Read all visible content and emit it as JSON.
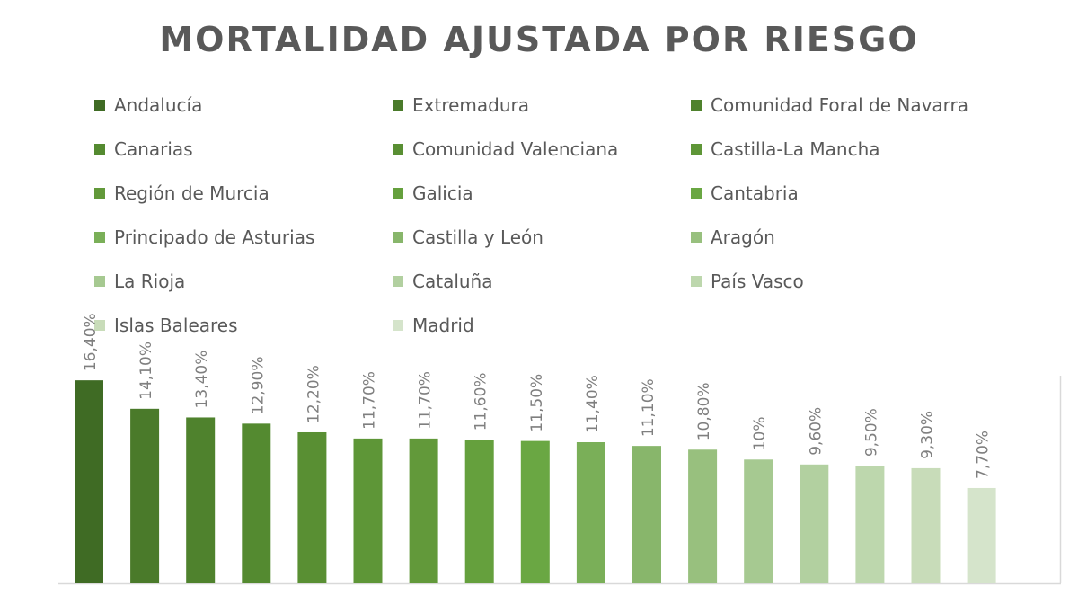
{
  "chart_data": {
    "type": "bar",
    "title": "MORTALIDAD AJUSTADA POR RIESGO",
    "categories": [
      "Andalucía",
      "Extremadura",
      "Comunidad Foral de Navarra",
      "Canarias",
      "Comunidad Valenciana",
      "Castilla-La Mancha",
      "Región de Murcia",
      "Galicia",
      "Cantabria",
      "Principado de Asturias",
      "Castilla y León",
      "Aragón",
      "La Rioja",
      "Cataluña",
      "País Vasco",
      "Islas Baleares",
      "Madrid"
    ],
    "values": [
      16.4,
      14.1,
      13.4,
      12.9,
      12.2,
      11.7,
      11.7,
      11.6,
      11.5,
      11.4,
      11.1,
      10.8,
      10.0,
      9.6,
      9.5,
      9.3,
      7.7
    ],
    "labels": [
      "16,40%",
      "14,10%",
      "13,40%",
      "12,90%",
      "12,20%",
      "11,70%",
      "11,70%",
      "11,60%",
      "11,50%",
      "11,40%",
      "11,10%",
      "10,80%",
      "10%",
      "9,60%",
      "9,50%",
      "9,30%",
      "7,70%"
    ],
    "colors": [
      "#3f6b24",
      "#4a7a2a",
      "#4f822d",
      "#548a30",
      "#598f33",
      "#5e9637",
      "#62993a",
      "#65a03d",
      "#6aa743",
      "#7aaf58",
      "#88b66b",
      "#98c07e",
      "#a6c991",
      "#b2d0a0",
      "#bdd7ad",
      "#c8dcb9",
      "#d5e4cb"
    ],
    "ylim": [
      0,
      17.5
    ],
    "legend_position": "top",
    "grid": false
  }
}
